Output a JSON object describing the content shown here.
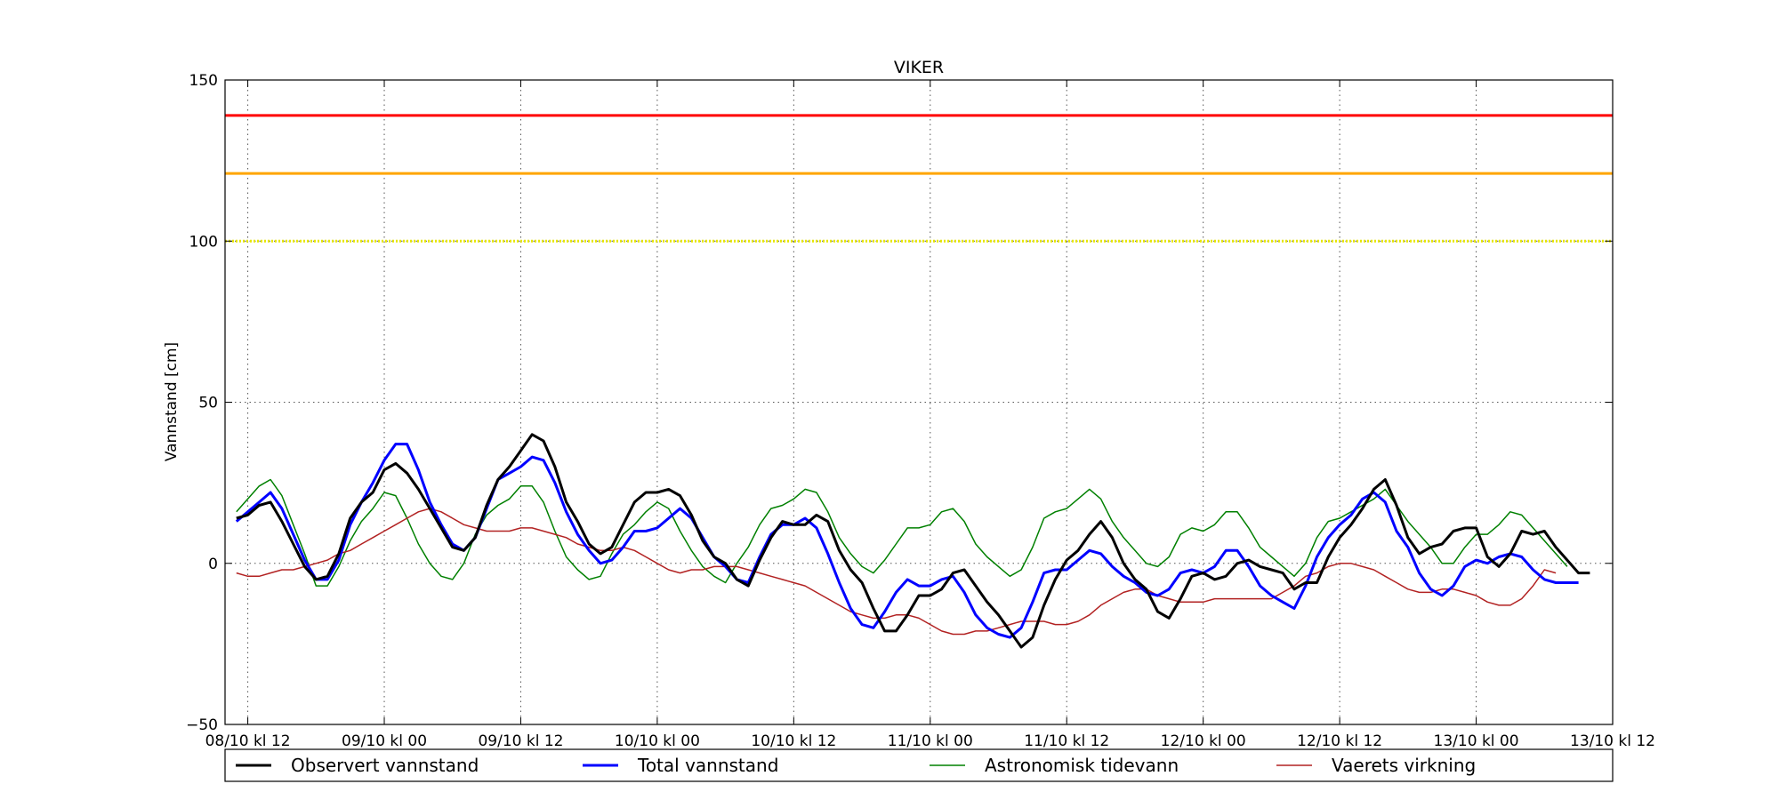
{
  "chart_data": {
    "type": "line",
    "title": "VIKER",
    "xlabel": "",
    "ylabel": "Vannstand [cm]",
    "ylim": [
      -50,
      150
    ],
    "yticks": [
      -50,
      0,
      50,
      100,
      150
    ],
    "xlim": [
      -2,
      120
    ],
    "xticks": [
      0,
      12,
      24,
      36,
      48,
      60,
      72,
      84,
      96,
      108,
      120
    ],
    "xtick_labels": [
      "08/10 kl 12",
      "09/10 kl 00",
      "09/10 kl 12",
      "10/10 kl 00",
      "10/10 kl 12",
      "11/10 kl 00",
      "11/10 kl 12",
      "12/10 kl 00",
      "12/10 kl 12",
      "13/10 kl 00",
      "13/10 kl 12"
    ],
    "x_start": -1,
    "x_step": 1,
    "grid": true,
    "legend_position": "bottom",
    "reference_lines": [
      {
        "value": 139,
        "color": "#ff0000",
        "style": "solid"
      },
      {
        "value": 121,
        "color": "#ffa500",
        "style": "solid"
      },
      {
        "value": 100,
        "color": "#e6e600",
        "style": "dotted"
      }
    ],
    "series": [
      {
        "name": "Astronomisk tidevann",
        "color": "#008000",
        "width": 1.5,
        "values": [
          16,
          20,
          24,
          26,
          21,
          12,
          3,
          -7,
          -7,
          -1,
          7,
          13,
          17,
          22,
          21,
          14,
          6,
          0,
          -4,
          -5,
          0,
          9,
          15,
          18,
          20,
          24,
          24,
          19,
          10,
          2,
          -2,
          -5,
          -4,
          3,
          9,
          12,
          16,
          19,
          17,
          10,
          4,
          -1,
          -4,
          -6,
          0,
          5,
          12,
          17,
          18,
          20,
          23,
          22,
          16,
          8,
          3,
          -1,
          -3,
          1,
          6,
          11,
          11,
          12,
          16,
          17,
          13,
          6,
          2,
          -1,
          -4,
          -2,
          5,
          14,
          16,
          17,
          20,
          23,
          20,
          13,
          8,
          4,
          0,
          -1,
          2,
          9,
          11,
          10,
          12,
          16,
          16,
          11,
          5,
          2,
          -1,
          -4,
          0,
          8,
          13,
          14,
          16,
          18,
          20,
          23,
          18,
          13,
          9,
          5,
          0,
          0,
          5,
          9,
          9,
          12,
          16,
          15,
          11,
          7,
          3,
          -1
        ]
      },
      {
        "name": "Vaerets virkning",
        "color": "#b22222",
        "width": 1.5,
        "values": [
          -3,
          -4,
          -4,
          -3,
          -2,
          -2,
          -1,
          0,
          1,
          3,
          4,
          6,
          8,
          10,
          12,
          14,
          16,
          17,
          16,
          14,
          12,
          11,
          10,
          10,
          10,
          11,
          11,
          10,
          9,
          8,
          6,
          5,
          4,
          4,
          5,
          4,
          2,
          0,
          -2,
          -3,
          -2,
          -2,
          -1,
          -1,
          -1,
          -2,
          -3,
          -4,
          -5,
          -6,
          -7,
          -9,
          -11,
          -13,
          -15,
          -16,
          -17,
          -17,
          -16,
          -16,
          -17,
          -19,
          -21,
          -22,
          -22,
          -21,
          -21,
          -20,
          -19,
          -18,
          -18,
          -18,
          -19,
          -19,
          -18,
          -16,
          -13,
          -11,
          -9,
          -8,
          -8,
          -10,
          -11,
          -12,
          -12,
          -12,
          -11,
          -11,
          -11,
          -11,
          -11,
          -11,
          -9,
          -7,
          -4,
          -3,
          -1,
          0,
          0,
          -1,
          -2,
          -4,
          -6,
          -8,
          -9,
          -9,
          -8,
          -8,
          -9,
          -10,
          -12,
          -13,
          -13,
          -11,
          -7,
          -2,
          -3
        ]
      },
      {
        "name": "Total vannstand",
        "color": "#0000ff",
        "width": 3,
        "values": [
          13,
          16,
          19,
          22,
          17,
          9,
          1,
          -5,
          -5,
          1,
          12,
          19,
          25,
          32,
          37,
          37,
          29,
          19,
          12,
          6,
          4,
          8,
          17,
          26,
          28,
          30,
          33,
          32,
          25,
          16,
          9,
          4,
          0,
          1,
          5,
          10,
          10,
          11,
          14,
          17,
          14,
          8,
          2,
          -1,
          -5,
          -6,
          2,
          9,
          12,
          12,
          14,
          11,
          3,
          -6,
          -14,
          -19,
          -20,
          -15,
          -9,
          -5,
          -7,
          -7,
          -5,
          -4,
          -9,
          -16,
          -20,
          -22,
          -23,
          -20,
          -12,
          -3,
          -2,
          -2,
          1,
          4,
          3,
          -1,
          -4,
          -6,
          -9,
          -10,
          -8,
          -3,
          -2,
          -3,
          -1,
          4,
          4,
          -1,
          -7,
          -10,
          -12,
          -14,
          -7,
          2,
          8,
          12,
          15,
          20,
          22,
          19,
          10,
          5,
          -3,
          -8,
          -10,
          -7,
          -1,
          1,
          0,
          2,
          3,
          2,
          -2,
          -5,
          -6,
          -6,
          -6
        ]
      },
      {
        "name": "Observert vannstand",
        "color": "#000000",
        "width": 3,
        "values": [
          14,
          15,
          18,
          19,
          13,
          6,
          -1,
          -5,
          -4,
          3,
          14,
          19,
          22,
          29,
          31,
          28,
          23,
          17,
          11,
          5,
          4,
          8,
          18,
          26,
          30,
          35,
          40,
          38,
          30,
          19,
          13,
          6,
          3,
          5,
          12,
          19,
          22,
          22,
          23,
          21,
          15,
          7,
          2,
          0,
          -5,
          -7,
          1,
          8,
          13,
          12,
          12,
          15,
          13,
          4,
          -2,
          -6,
          -14,
          -21,
          -21,
          -16,
          -10,
          -10,
          -8,
          -3,
          -2,
          -7,
          -12,
          -16,
          -21,
          -26,
          -23,
          -13,
          -5,
          1,
          4,
          9,
          13,
          8,
          0,
          -5,
          -8,
          -15,
          -17,
          -11,
          -4,
          -3,
          -5,
          -4,
          0,
          1,
          -1,
          -2,
          -3,
          -8,
          -6,
          -6,
          2,
          8,
          12,
          17,
          23,
          26,
          18,
          8,
          3,
          5,
          6,
          10,
          11,
          11,
          2,
          -1,
          3,
          10,
          9,
          10,
          5,
          1,
          -3,
          -3
        ]
      }
    ],
    "legend_order": [
      "Observert vannstand",
      "Total vannstand",
      "Astronomisk tidevann",
      "Vaerets virkning"
    ]
  }
}
